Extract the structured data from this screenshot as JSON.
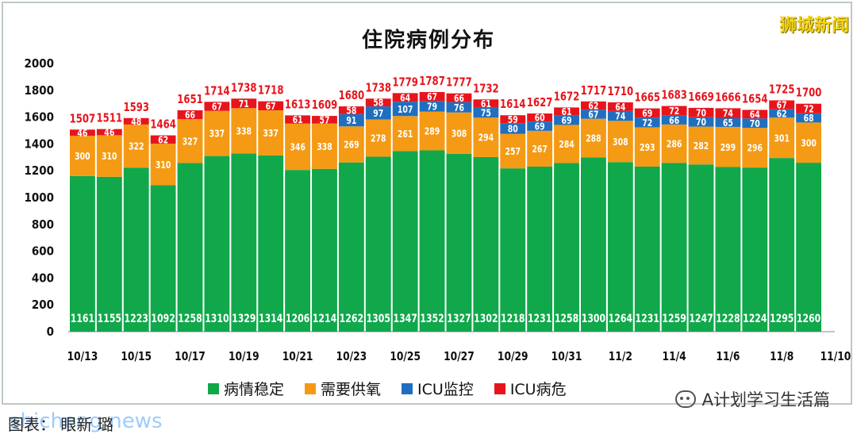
{
  "title": "住院病例分布",
  "brand": "狮城新闻",
  "footer": {
    "left_text": "图表：    眼新    璐",
    "watermark": "shicheng.news",
    "account": "A计划学习生活篇"
  },
  "chart_data": {
    "type": "bar",
    "stacked": true,
    "title": "住院病例分布",
    "ylim": [
      0,
      2000
    ],
    "yticks": [
      0,
      200,
      400,
      600,
      800,
      1000,
      1200,
      1400,
      1600,
      1800,
      2000
    ],
    "x_tick_labels": [
      "10/13",
      "10/15",
      "10/17",
      "10/19",
      "10/21",
      "10/23",
      "10/25",
      "10/27",
      "10/29",
      "10/31",
      "11/2",
      "11/4",
      "11/6",
      "11/8",
      "11/10"
    ],
    "categories": [
      "10/13",
      "10/14",
      "10/15",
      "10/16",
      "10/17",
      "10/18",
      "10/19",
      "10/20",
      "10/21",
      "10/22",
      "10/23",
      "10/24",
      "10/25",
      "10/26",
      "10/27",
      "10/28",
      "10/29",
      "10/30",
      "10/31",
      "11/1",
      "11/2",
      "11/3",
      "11/4",
      "11/5",
      "11/6",
      "11/7",
      "11/8",
      "11/9"
    ],
    "totals": [
      1507,
      1511,
      1593,
      1464,
      1651,
      1714,
      1738,
      1718,
      1613,
      1609,
      1680,
      1738,
      1779,
      1787,
      1777,
      1732,
      1614,
      1627,
      1672,
      1717,
      1710,
      1665,
      1683,
      1669,
      1666,
      1654,
      1725,
      1700
    ],
    "series": [
      {
        "name": "病情稳定",
        "color": "#10a84a",
        "label_color": "#ffffff",
        "values": [
          1161,
          1155,
          1223,
          1092,
          1258,
          1310,
          1329,
          1314,
          1206,
          1214,
          1262,
          1305,
          1347,
          1352,
          1327,
          1302,
          1218,
          1231,
          1258,
          1300,
          1264,
          1231,
          1259,
          1247,
          1228,
          1224,
          1295,
          1260
        ]
      },
      {
        "name": "需要供氧",
        "color": "#f59a14",
        "label_color": "#ffffff",
        "values": [
          300,
          310,
          322,
          310,
          327,
          337,
          338,
          337,
          346,
          338,
          269,
          278,
          261,
          289,
          308,
          294,
          257,
          267,
          284,
          288,
          308,
          293,
          286,
          282,
          299,
          296,
          301,
          300
        ]
      },
      {
        "name": "ICU监控",
        "color": "#1f6fc0",
        "label_color": "#ffffff",
        "values": [
          0,
          0,
          0,
          0,
          0,
          0,
          0,
          0,
          0,
          0,
          91,
          97,
          107,
          79,
          76,
          75,
          80,
          69,
          69,
          67,
          74,
          72,
          66,
          70,
          65,
          70,
          62,
          68
        ]
      },
      {
        "name": "ICU病危",
        "color": "#e8141c",
        "label_color": "#ffffff",
        "values": [
          46,
          46,
          48,
          62,
          66,
          67,
          71,
          67,
          61,
          57,
          58,
          58,
          64,
          67,
          66,
          61,
          59,
          60,
          61,
          62,
          64,
          69,
          72,
          70,
          74,
          64,
          67,
          72
        ]
      }
    ],
    "legend_position": "bottom",
    "grid": false
  }
}
